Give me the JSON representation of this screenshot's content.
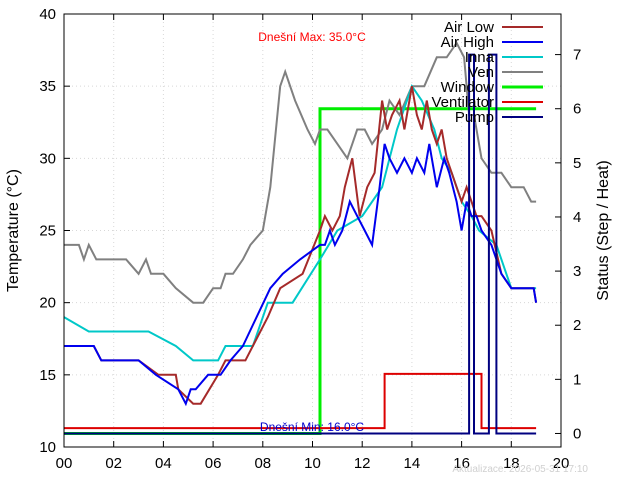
{
  "chart_data": {
    "type": "line",
    "ylabel": "Temperature (°C)",
    "y2label": "Status (Step / Heat)",
    "xlim": [
      0,
      20
    ],
    "ylim": [
      10,
      40
    ],
    "y2lim": [
      -0.25,
      7.75
    ],
    "x_ticks": [
      0,
      2,
      4,
      6,
      8,
      10,
      12,
      14,
      16,
      18,
      20
    ],
    "x_tick_labels": [
      "00",
      "02",
      "04",
      "06",
      "08",
      "10",
      "12",
      "14",
      "16",
      "18",
      "20"
    ],
    "y_ticks": [
      10,
      15,
      20,
      25,
      30,
      35,
      40
    ],
    "y2_ticks": [
      0,
      1,
      2,
      3,
      4,
      5,
      6,
      7
    ],
    "grid": true,
    "legend_position": "top-right",
    "annotations": {
      "max_text": "Dnešní Max: 35.0°C",
      "min_text": "Dnešní Min: 16.0°C",
      "max_color": "#ff0000",
      "min_color": "#0000cc"
    },
    "timestamp_text": "Aktualizace: 2026-05-31 17:10",
    "series": [
      {
        "name": "Air Low",
        "axis": "y1",
        "color": "#a52a2a",
        "step": false,
        "x": [
          0,
          1.2,
          1.5,
          3,
          3.8,
          4.5,
          4.6,
          5.2,
          5.5,
          6.2,
          6.5,
          7.3,
          8.2,
          8.7,
          9.6,
          10.3,
          10.5,
          10.8,
          11.1,
          11.3,
          11.6,
          11.9,
          12.2,
          12.5,
          12.8,
          13.0,
          13.2,
          13.5,
          13.7,
          14.0,
          14.2,
          14.4,
          14.6,
          14.8,
          15.0,
          15.2,
          15.4,
          15.6,
          15.8,
          16.0,
          16.2,
          16.4,
          16.6,
          16.8,
          17.2,
          17.6,
          18.0,
          18.9,
          19.0
        ],
        "y": [
          17,
          17,
          16,
          16,
          15,
          15,
          14,
          13,
          13,
          15,
          16,
          16,
          19,
          21,
          22,
          25,
          26,
          25,
          26,
          28,
          30,
          26,
          28,
          29,
          34,
          32,
          33,
          34,
          32,
          35,
          33,
          32,
          34,
          32,
          31,
          32,
          30,
          29,
          28,
          27,
          28,
          27,
          26,
          26,
          25,
          22,
          21,
          21,
          20
        ]
      },
      {
        "name": "Air High",
        "axis": "y1",
        "color": "#0000ee",
        "step": false,
        "x": [
          0,
          1.2,
          1.5,
          3,
          3.7,
          4.6,
          4.9,
          5.1,
          5.3,
          5.8,
          6.3,
          6.7,
          7.2,
          8.3,
          8.8,
          9.5,
          10.3,
          10.5,
          10.7,
          10.9,
          11.2,
          11.5,
          11.8,
          12.1,
          12.4,
          12.7,
          12.9,
          13.1,
          13.4,
          13.7,
          14.0,
          14.2,
          14.5,
          14.7,
          15.0,
          15.3,
          15.5,
          15.8,
          16.0,
          16.2,
          16.4,
          16.6,
          16.8,
          17.2,
          17.6,
          18.0,
          18.9,
          19.0
        ],
        "y": [
          17,
          17,
          16,
          16,
          15,
          14,
          13,
          14,
          14,
          15,
          15,
          16,
          17,
          21,
          22,
          23,
          24,
          24,
          25,
          24,
          25,
          27,
          26,
          25,
          24,
          28,
          31,
          30,
          29,
          30,
          29,
          30,
          29,
          31,
          28,
          30,
          29,
          27,
          25,
          27,
          26,
          26,
          25,
          24,
          22,
          21,
          21,
          20
        ]
      },
      {
        "name": "Inna",
        "axis": "y1",
        "color": "#00c8c8",
        "step": false,
        "x": [
          0,
          1,
          3.4,
          4.5,
          5.2,
          6.2,
          6.5,
          7.6,
          8.2,
          9.2,
          10.3,
          11.0,
          12.0,
          12.8,
          13.4,
          14.0,
          14.4,
          14.9,
          15.2,
          15.6,
          16.0,
          16.4,
          16.7,
          17.4,
          18,
          18.5,
          19.0
        ],
        "y": [
          19,
          18,
          18,
          17,
          16,
          16,
          17,
          17,
          20,
          20,
          23,
          25,
          26,
          28,
          32,
          35,
          34,
          32,
          30,
          29,
          27,
          26,
          25,
          24,
          21,
          21,
          21
        ]
      },
      {
        "name": "Ven",
        "axis": "y1",
        "color": "#808080",
        "step": false,
        "x": [
          0,
          0.6,
          0.8,
          1.0,
          1.3,
          2.5,
          3.0,
          3.3,
          3.5,
          4.0,
          4.5,
          5.2,
          5.6,
          6.0,
          6.3,
          6.5,
          6.8,
          7.2,
          7.5,
          8.0,
          8.3,
          8.7,
          8.9,
          9.3,
          9.8,
          10.1,
          10.3,
          10.6,
          11.0,
          11.4,
          11.6,
          11.8,
          12.1,
          12.4,
          12.8,
          13.1,
          13.5,
          14.0,
          14.5,
          15.0,
          15.4,
          15.8,
          16.1,
          16.3,
          16.5,
          16.8,
          17.2,
          17.6,
          18.0,
          18.5,
          18.8,
          19.0
        ],
        "y": [
          24,
          24,
          23,
          24,
          23,
          23,
          22,
          23,
          22,
          22,
          21,
          20,
          20,
          21,
          21,
          22,
          22,
          23,
          24,
          25,
          28,
          35,
          36,
          34,
          32,
          31,
          32,
          32,
          31,
          30,
          31,
          32,
          32,
          31,
          32,
          34,
          33,
          35,
          35,
          37,
          37,
          38,
          37,
          33,
          33,
          30,
          29,
          29,
          28,
          28,
          27,
          27
        ]
      },
      {
        "name": "Window",
        "axis": "y2",
        "color": "#00ee00",
        "step": true,
        "x": [
          0,
          10.3,
          10.3,
          19.0
        ],
        "y": [
          0,
          0,
          6,
          6
        ]
      },
      {
        "name": "Ventilator",
        "axis": "y2",
        "color": "#dd0000",
        "step": true,
        "x": [
          0,
          12.9,
          12.9,
          16.8,
          16.8,
          19.0
        ],
        "y": [
          0.1,
          0.1,
          1.1,
          1.1,
          0.1,
          0.1
        ]
      },
      {
        "name": "Pump",
        "axis": "y2",
        "color": "#000080",
        "step": true,
        "x": [
          0,
          16.3,
          16.3,
          16.5,
          16.5,
          17.1,
          17.1,
          17.4,
          17.4,
          19.0
        ],
        "y": [
          0,
          0,
          7,
          7,
          0,
          0,
          7,
          7,
          0,
          0
        ]
      }
    ]
  }
}
